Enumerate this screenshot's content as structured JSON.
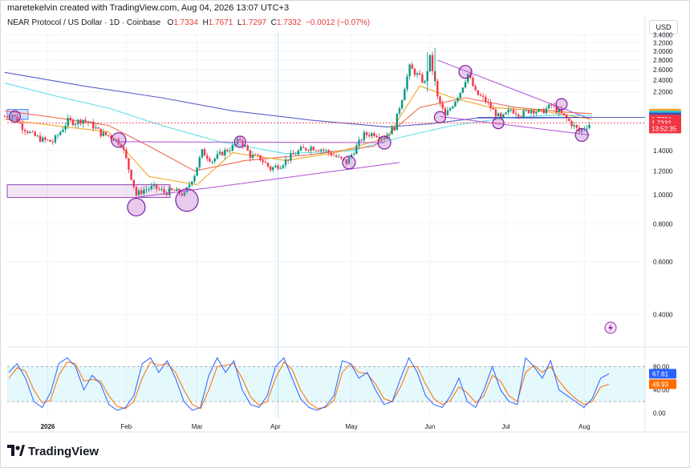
{
  "header": {
    "credit": "maretekelvin created with TradingView.com, Aug 04, 2026 13:07 UTC+3",
    "symbol": "NEAR Protocol / US Dollar · 1D · Coinbase",
    "open_label": "O",
    "open": "1.7334",
    "high_label": "H",
    "high": "1.7671",
    "low_label": "L",
    "low": "1.7297",
    "close_label": "C",
    "close": "1.7332",
    "change": "−0.0012 (−0.07%)"
  },
  "currency": "USD",
  "brand": "TradingView",
  "colors": {
    "up": "#089981",
    "down": "#f23645",
    "ma_fast": "#f5a623",
    "ma_mid": "#ef6c4d",
    "ma_cyan": "#5ee0e6",
    "ma_slow": "#5b5fc7",
    "trend": "#b04fd6",
    "k_line": "#2962ff",
    "d_line": "#ff6d00"
  },
  "chart_data": [
    {
      "type": "candlestick",
      "title": "NEAR Protocol / US Dollar · 1D · Coinbase",
      "x_tick_labels": [
        "2026",
        "Feb",
        "Mar",
        "Apr",
        "May",
        "Jun",
        "Jul",
        "Aug"
      ],
      "y_tick_labels": [
        "3.4000",
        "3.2000",
        "3.0000",
        "2.8000",
        "2.6000",
        "2.4000",
        "2.2000",
        "1.4000",
        "1.2000",
        "1.0000",
        "0.8000",
        "0.6000",
        "0.4000"
      ],
      "ylim": [
        0.32,
        3.45
      ],
      "grid": true,
      "close_path": [
        {
          "x": "2025-12-15",
          "y": 1.82
        },
        {
          "x": "2025-12-18",
          "y": 1.85
        },
        {
          "x": "2025-12-22",
          "y": 1.68
        },
        {
          "x": "2025-12-26",
          "y": 1.58
        },
        {
          "x": "2025-12-30",
          "y": 1.52
        },
        {
          "x": "2026-01-03",
          "y": 1.5
        },
        {
          "x": "2026-01-06",
          "y": 1.62
        },
        {
          "x": "2026-01-09",
          "y": 1.76
        },
        {
          "x": "2026-01-12",
          "y": 1.74
        },
        {
          "x": "2026-01-15",
          "y": 1.78
        },
        {
          "x": "2026-01-19",
          "y": 1.69
        },
        {
          "x": "2026-01-22",
          "y": 1.6
        },
        {
          "x": "2026-01-26",
          "y": 1.56
        },
        {
          "x": "2026-01-30",
          "y": 1.48
        },
        {
          "x": "2026-02-02",
          "y": 1.22
        },
        {
          "x": "2026-02-05",
          "y": 1.0
        },
        {
          "x": "2026-02-08",
          "y": 1.04
        },
        {
          "x": "2026-02-12",
          "y": 1.06
        },
        {
          "x": "2026-02-16",
          "y": 1.02
        },
        {
          "x": "2026-02-20",
          "y": 1.03
        },
        {
          "x": "2026-02-24",
          "y": 1.0
        },
        {
          "x": "2026-02-28",
          "y": 1.17
        },
        {
          "x": "2026-03-03",
          "y": 1.39
        },
        {
          "x": "2026-03-07",
          "y": 1.3
        },
        {
          "x": "2026-03-11",
          "y": 1.38
        },
        {
          "x": "2026-03-15",
          "y": 1.44
        },
        {
          "x": "2026-03-18",
          "y": 1.53
        },
        {
          "x": "2026-03-22",
          "y": 1.35
        },
        {
          "x": "2026-03-26",
          "y": 1.32
        },
        {
          "x": "2026-03-30",
          "y": 1.22
        },
        {
          "x": "2026-04-03",
          "y": 1.26
        },
        {
          "x": "2026-04-07",
          "y": 1.34
        },
        {
          "x": "2026-04-11",
          "y": 1.41
        },
        {
          "x": "2026-04-15",
          "y": 1.44
        },
        {
          "x": "2026-04-19",
          "y": 1.42
        },
        {
          "x": "2026-04-23",
          "y": 1.37
        },
        {
          "x": "2026-04-26",
          "y": 1.32
        },
        {
          "x": "2026-04-29",
          "y": 1.28
        },
        {
          "x": "2026-05-02",
          "y": 1.4
        },
        {
          "x": "2026-05-06",
          "y": 1.58
        },
        {
          "x": "2026-05-10",
          "y": 1.6
        },
        {
          "x": "2026-05-14",
          "y": 1.55
        },
        {
          "x": "2026-05-18",
          "y": 1.68
        },
        {
          "x": "2026-05-21",
          "y": 2.1
        },
        {
          "x": "2026-05-24",
          "y": 2.65
        },
        {
          "x": "2026-05-27",
          "y": 2.5
        },
        {
          "x": "2026-05-30",
          "y": 2.35
        },
        {
          "x": "2026-06-01",
          "y": 2.85
        },
        {
          "x": "2026-06-04",
          "y": 2.1
        },
        {
          "x": "2026-06-07",
          "y": 1.82
        },
        {
          "x": "2026-06-10",
          "y": 2.0
        },
        {
          "x": "2026-06-13",
          "y": 2.2
        },
        {
          "x": "2026-06-16",
          "y": 2.52
        },
        {
          "x": "2026-06-19",
          "y": 2.18
        },
        {
          "x": "2026-06-23",
          "y": 2.05
        },
        {
          "x": "2026-06-26",
          "y": 1.9
        },
        {
          "x": "2026-06-29",
          "y": 1.78
        },
        {
          "x": "2026-07-03",
          "y": 1.92
        },
        {
          "x": "2026-07-07",
          "y": 1.85
        },
        {
          "x": "2026-07-11",
          "y": 1.92
        },
        {
          "x": "2026-07-15",
          "y": 1.88
        },
        {
          "x": "2026-07-19",
          "y": 1.98
        },
        {
          "x": "2026-07-23",
          "y": 1.85
        },
        {
          "x": "2026-07-27",
          "y": 1.72
        },
        {
          "x": "2026-07-30",
          "y": 1.62
        },
        {
          "x": "2026-08-02",
          "y": 1.7
        },
        {
          "x": "2026-08-04",
          "y": 1.733
        }
      ],
      "moving_averages": [
        {
          "color": "#5b5fc7",
          "points": [
            {
              "x": "2025-12-15",
              "y": 2.55
            },
            {
              "x": "2026-01-15",
              "y": 2.3
            },
            {
              "x": "2026-02-15",
              "y": 2.1
            },
            {
              "x": "2026-03-15",
              "y": 1.9
            },
            {
              "x": "2026-04-15",
              "y": 1.77
            },
            {
              "x": "2026-05-15",
              "y": 1.68
            },
            {
              "x": "2026-06-01",
              "y": 1.72
            },
            {
              "x": "2026-06-20",
              "y": 1.8
            },
            {
              "x": "2026-07-15",
              "y": 1.8
            },
            {
              "x": "2026-08-04",
              "y": 1.808
            }
          ]
        },
        {
          "color": "#5ee0e6",
          "points": [
            {
              "x": "2025-12-15",
              "y": 2.35
            },
            {
              "x": "2026-01-05",
              "y": 2.12
            },
            {
              "x": "2026-01-25",
              "y": 1.94
            },
            {
              "x": "2026-02-15",
              "y": 1.7
            },
            {
              "x": "2026-03-10",
              "y": 1.5
            },
            {
              "x": "2026-04-05",
              "y": 1.37
            },
            {
              "x": "2026-05-01",
              "y": 1.4
            },
            {
              "x": "2026-05-20",
              "y": 1.55
            },
            {
              "x": "2026-06-10",
              "y": 1.7
            },
            {
              "x": "2026-07-01",
              "y": 1.8
            },
            {
              "x": "2026-07-20",
              "y": 1.84
            },
            {
              "x": "2026-08-04",
              "y": 1.833
            }
          ]
        },
        {
          "color": "#ef6c4d",
          "points": [
            {
              "x": "2025-12-15",
              "y": 1.9
            },
            {
              "x": "2026-01-05",
              "y": 1.8
            },
            {
              "x": "2026-01-25",
              "y": 1.7
            },
            {
              "x": "2026-02-10",
              "y": 1.45
            },
            {
              "x": "2026-02-28",
              "y": 1.2
            },
            {
              "x": "2026-03-20",
              "y": 1.3
            },
            {
              "x": "2026-04-15",
              "y": 1.36
            },
            {
              "x": "2026-05-10",
              "y": 1.45
            },
            {
              "x": "2026-05-28",
              "y": 1.95
            },
            {
              "x": "2026-06-15",
              "y": 2.1
            },
            {
              "x": "2026-07-05",
              "y": 1.95
            },
            {
              "x": "2026-07-25",
              "y": 1.88
            },
            {
              "x": "2026-08-04",
              "y": 1.86
            }
          ]
        },
        {
          "color": "#f5a623",
          "points": [
            {
              "x": "2025-12-15",
              "y": 1.78
            },
            {
              "x": "2026-01-08",
              "y": 1.68
            },
            {
              "x": "2026-01-25",
              "y": 1.62
            },
            {
              "x": "2026-02-10",
              "y": 1.15
            },
            {
              "x": "2026-03-01",
              "y": 1.08
            },
            {
              "x": "2026-03-15",
              "y": 1.38
            },
            {
              "x": "2026-04-05",
              "y": 1.3
            },
            {
              "x": "2026-04-25",
              "y": 1.38
            },
            {
              "x": "2026-05-15",
              "y": 1.55
            },
            {
              "x": "2026-05-28",
              "y": 2.3
            },
            {
              "x": "2026-06-10",
              "y": 2.1
            },
            {
              "x": "2026-06-25",
              "y": 1.95
            },
            {
              "x": "2026-07-15",
              "y": 1.9
            },
            {
              "x": "2026-08-04",
              "y": 1.78
            }
          ]
        }
      ],
      "price_tags": [
        {
          "label": "1.8604",
          "value": 1.8604,
          "color": "#f5a623"
        },
        {
          "label": "1.8334",
          "value": 1.8334,
          "color": "#26c6da"
        },
        {
          "label": "1.8078",
          "value": 1.8078,
          "color": "#3f51b5"
        },
        {
          "label": "1.7784",
          "value": 1.7784,
          "color": "#f23645"
        },
        {
          "label": "1.7332",
          "value": 1.7332,
          "color": "#f23645"
        },
        {
          "label": "13:52:35",
          "value": 1.66,
          "color": "#f23645"
        }
      ],
      "last_price": 1.7332
    },
    {
      "type": "line",
      "x_tick_labels": [
        "2026",
        "Feb",
        "Mar",
        "Apr",
        "May",
        "Jun",
        "Jul",
        "Aug"
      ],
      "y_tick_labels": [
        "80.00",
        "40.00",
        "0.00"
      ],
      "ylim": [
        -10,
        108
      ],
      "bands": [
        20,
        80
      ],
      "series": [
        {
          "color": "#2962ff",
          "last": "67.61"
        },
        {
          "color": "#ff6d00",
          "last": "49.93"
        }
      ],
      "k_values": [
        70,
        85,
        60,
        20,
        10,
        35,
        85,
        95,
        80,
        40,
        65,
        50,
        15,
        5,
        10,
        30,
        85,
        95,
        70,
        90,
        60,
        20,
        5,
        10,
        65,
        95,
        70,
        90,
        40,
        15,
        10,
        30,
        80,
        95,
        60,
        25,
        10,
        5,
        12,
        30,
        90,
        85,
        60,
        70,
        40,
        15,
        20,
        60,
        95,
        70,
        30,
        15,
        10,
        30,
        60,
        20,
        10,
        40,
        80,
        40,
        20,
        15,
        95,
        80,
        60,
        90,
        40,
        30,
        20,
        10,
        25,
        60,
        67.61
      ],
      "d_values": [
        60,
        78,
        72,
        40,
        18,
        22,
        65,
        88,
        85,
        55,
        58,
        55,
        30,
        12,
        8,
        20,
        60,
        88,
        82,
        85,
        70,
        40,
        15,
        8,
        40,
        80,
        82,
        85,
        60,
        28,
        14,
        20,
        60,
        88,
        75,
        40,
        18,
        8,
        10,
        22,
        70,
        85,
        70,
        68,
        50,
        25,
        20,
        45,
        80,
        80,
        50,
        25,
        15,
        22,
        45,
        35,
        18,
        30,
        65,
        55,
        30,
        20,
        70,
        82,
        70,
        80,
        55,
        38,
        25,
        15,
        20,
        45,
        49.93
      ]
    }
  ]
}
